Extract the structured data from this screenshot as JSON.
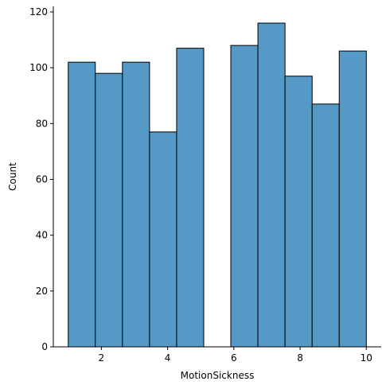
{
  "chart_data": {
    "type": "bar",
    "subtype": "histogram",
    "title": "",
    "xlabel": "MotionSickness",
    "ylabel": "Count",
    "xlim": [
      0.55,
      10.45
    ],
    "ylim": [
      0,
      122
    ],
    "xticks": [
      2,
      4,
      6,
      8,
      10
    ],
    "yticks": [
      0,
      20,
      40,
      60,
      80,
      100,
      120
    ],
    "bins": [
      {
        "start": 1.0,
        "end": 1.818,
        "count": 102
      },
      {
        "start": 1.818,
        "end": 2.636,
        "count": 98
      },
      {
        "start": 2.636,
        "end": 3.455,
        "count": 102
      },
      {
        "start": 3.455,
        "end": 4.273,
        "count": 77
      },
      {
        "start": 4.273,
        "end": 5.091,
        "count": 107
      },
      {
        "start": 5.091,
        "end": 5.909,
        "count": 0
      },
      {
        "start": 5.909,
        "end": 6.727,
        "count": 108
      },
      {
        "start": 6.727,
        "end": 7.545,
        "count": 116
      },
      {
        "start": 7.545,
        "end": 8.364,
        "count": 97
      },
      {
        "start": 8.364,
        "end": 9.182,
        "count": 87
      },
      {
        "start": 9.182,
        "end": 10.0,
        "count": 106
      }
    ],
    "grid": false,
    "spines": [
      "left",
      "bottom"
    ],
    "colors": {
      "bar_fill": "#5599c7",
      "bar_edge": "#000000"
    }
  }
}
